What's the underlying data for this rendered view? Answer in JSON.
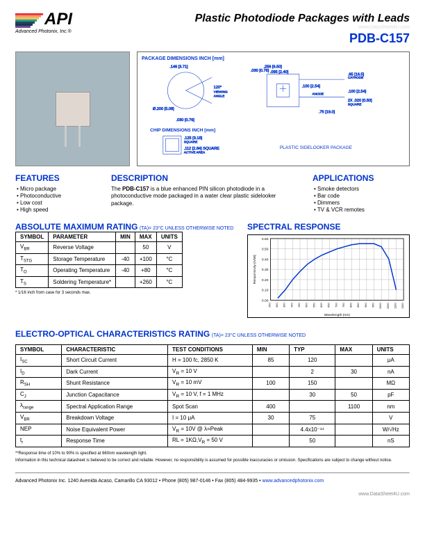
{
  "header": {
    "logo": "API",
    "company": "Advanced Photonix, Inc.®",
    "title": "Plastic Photodiode Packages with Leads",
    "part_number": "PDB-C157",
    "watermark": "www.DataSheet4U.com",
    "logo_colors": [
      "#e63946",
      "#f4a261",
      "#e9c46a",
      "#2a9d8f",
      "#264653",
      "#1d3557",
      "#6a4c93"
    ]
  },
  "diagram": {
    "pkg_title": "PACKAGE DIMENSIONS INCH [mm]",
    "chip_title": "CHIP DIMENSIONS INCH [mm]",
    "dims": {
      "d1": ".146 [3.71]",
      "d2": ".256 [6.50]",
      "d3": ".030 [0.76]",
      "d4": ".095 [2.40]",
      "d5": ".100 [2.54]",
      "d6": ".65 [16.5]",
      "d7": "Ø.200 [5.08]",
      "d8": ".030 [0.76]",
      "d9": ".125 [3.18]",
      "d10": ".112 [2.84] SQUARE",
      "d11": ".75 [19.0]",
      "d12": "2X .020 [0.50]"
    },
    "angle": "120°",
    "viewing": "VIEWING",
    "angle_lbl": "ANGLE",
    "cathode": "CATHODE",
    "anode": "ANODE",
    "square": "SQUARE",
    "square2": "SQUARE",
    "active": "ACTIVE AREA",
    "pkg_name": "PLASTIC SIDELOOKER PACKAGE"
  },
  "features": {
    "heading": "FEATURES",
    "items": [
      "Micro package",
      "Photoconductive",
      "Low cost",
      "High speed"
    ]
  },
  "description": {
    "heading": "DESCRIPTION",
    "prefix": "The ",
    "part": "PDB-C157",
    "text": " is a blue enhanced PIN silicon photodiode in a photoconductive mode packaged in a water clear plastic sidelooker package."
  },
  "applications": {
    "heading": "APPLICATIONS",
    "items": [
      "Smoke detectors",
      "Bar code",
      "Dimmers",
      "TV & VCR remotes"
    ]
  },
  "ratings": {
    "heading": "ABSOLUTE MAXIMUM RATING",
    "note": "(TA)= 23°C UNLESS OTHERWISE NOTED",
    "headers": [
      "SYMBOL",
      "PARAMETER",
      "MIN",
      "MAX",
      "UNITS"
    ],
    "rows": [
      {
        "sym": "V",
        "sub": "BR",
        "param": "Reverse Voltage",
        "min": "",
        "max": "50",
        "units": "V"
      },
      {
        "sym": "T",
        "sub": "STG",
        "param": "Storage Temperature",
        "min": "-40",
        "max": "+100",
        "units": "°C"
      },
      {
        "sym": "T",
        "sub": "O",
        "param": "Operating Temperature",
        "min": "-40",
        "max": "+80",
        "units": "°C"
      },
      {
        "sym": "T",
        "sub": "S",
        "param": "Soldering Temperature*",
        "min": "",
        "max": "+260",
        "units": "°C"
      }
    ],
    "footnote": "* 1/16 inch from case for 3 seconds max."
  },
  "spectral": {
    "heading": "SPECTRAL RESPONSE",
    "ylabel": "Responsivity (A/W)",
    "xlabel": "Wavelength (nm)",
    "ylim": [
      0,
      0.6
    ],
    "ytick_step": 0.1,
    "xlim": [
      250,
      1150
    ],
    "xtick_step": 50,
    "line_color": "#0033cc",
    "grid_color": "#888888",
    "data_x": [
      300,
      350,
      400,
      450,
      500,
      550,
      600,
      650,
      700,
      750,
      800,
      850,
      900,
      950,
      1000,
      1050,
      1100
    ],
    "data_y": [
      0.02,
      0.1,
      0.2,
      0.28,
      0.35,
      0.4,
      0.44,
      0.47,
      0.5,
      0.52,
      0.54,
      0.55,
      0.55,
      0.55,
      0.52,
      0.4,
      0.1
    ]
  },
  "elec": {
    "heading": "ELECTRO-OPTICAL CHARACTERISTICS RATING",
    "note": "(TA)= 23°C UNLESS OTHERWISE NOTED",
    "headers": [
      "SYMBOL",
      "CHARACTERISTIC",
      "TEST CONDITIONS",
      "MIN",
      "TYP",
      "MAX",
      "UNITS"
    ],
    "rows": [
      {
        "sym": "I",
        "sub": "SC",
        "char": "Short Circuit Current",
        "cond": "H = 100 fc, 2850 K",
        "min": "85",
        "typ": "120",
        "max": "",
        "units": "μA"
      },
      {
        "sym": "I",
        "sub": "D",
        "char": "Dark Current",
        "cond": "V",
        "cond_sub": "R",
        "cond2": " = 10 V",
        "min": "",
        "typ": "2",
        "max": "30",
        "units": "nA"
      },
      {
        "sym": "R",
        "sub": "SH",
        "char": "Shunt Resistance",
        "cond": "V",
        "cond_sub": "R",
        "cond2": " = 10 mV",
        "min": "100",
        "typ": "150",
        "max": "",
        "units": "MΩ"
      },
      {
        "sym": "C",
        "sub": "J",
        "char": "Junction Capacitance",
        "cond": "V",
        "cond_sub": "R",
        "cond2": " = 10 V,  f = 1 MHz",
        "min": "",
        "typ": "30",
        "max": "50",
        "units": "pF"
      },
      {
        "sym": "λ",
        "sub": "range",
        "char": "Spectral Application Range",
        "cond": "Spot Scan",
        "min": "400",
        "typ": "",
        "max": "1100",
        "units": "nm"
      },
      {
        "sym": "V",
        "sub": "BR",
        "char": "Breakdown Voltage",
        "cond": "I = 10 μA",
        "min": "30",
        "typ": "75",
        "max": "",
        "units": "V"
      },
      {
        "sym": "NEP",
        "sub": "",
        "char": "Noise Equivalent Power",
        "cond": "V",
        "cond_sub": "R",
        "cond2": " = 10V @ λ=Peak",
        "min": "",
        "typ": "4.4x10⁻¹⁴",
        "max": "",
        "units": "W/√Hz"
      },
      {
        "sym": "t",
        "sub": "r",
        "char": "Response Time",
        "cond": "RL = 1KΩ,V",
        "cond_sub": "R",
        "cond2": " = 50 V",
        "min": "",
        "typ": "50",
        "max": "",
        "units": "nS"
      }
    ],
    "footnote1": "**Response time of 10% to 90% is specified at 660nm wavelength light.",
    "footnote2": "Information in this technical datasheet is believed to be correct and reliable. However, no responsibility is assumed for possible inaccuracies or omission. Specifications are subject to change without notice."
  },
  "footer": {
    "company": "Advanced Photonix Inc. 1240 Avenida Acaso, Camarillo CA 93012 • Phone (805) 987-0146 • Fax (805) 484-9935 • ",
    "url": "www.advancedphotonix.com",
    "watermark": "www.DataSheet4U.com"
  }
}
